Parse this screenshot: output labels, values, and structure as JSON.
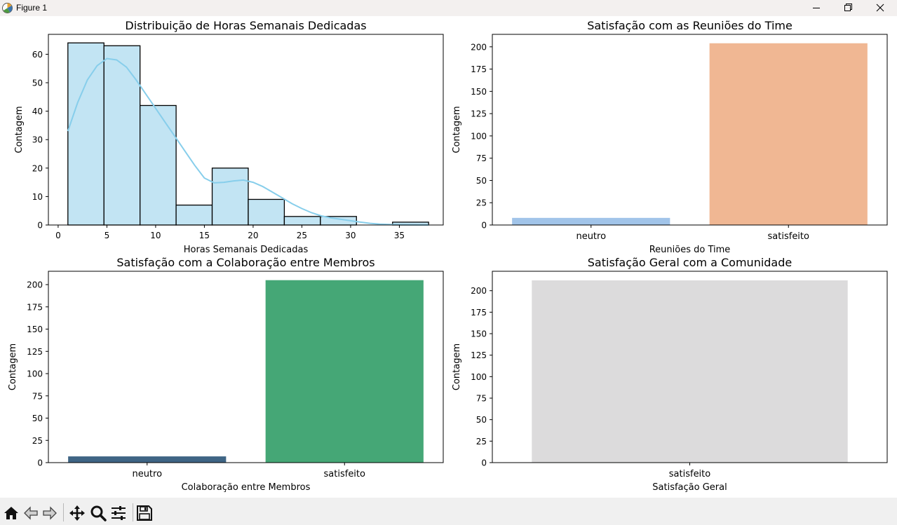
{
  "window": {
    "title": "Figure 1"
  },
  "toolbar": {
    "buttons": [
      {
        "name": "home",
        "icon": "home-icon"
      },
      {
        "name": "back",
        "icon": "back-arrow-icon"
      },
      {
        "name": "forward",
        "icon": "forward-arrow-icon"
      },
      {
        "name": "pan",
        "icon": "move-icon"
      },
      {
        "name": "zoom",
        "icon": "magnifier-icon"
      },
      {
        "name": "configure-subplots",
        "icon": "sliders-icon"
      },
      {
        "name": "save",
        "icon": "floppy-disk-icon"
      }
    ]
  },
  "chart_data": [
    {
      "type": "bar",
      "subtype": "histogram-with-kde",
      "title": "Distribuição de Horas Semanais Dedicadas",
      "xlabel": "Horas Semanais Dedicadas",
      "ylabel": "Contagem",
      "bins": [
        {
          "x0": 1.0,
          "x1": 4.7,
          "count": 64
        },
        {
          "x0": 4.7,
          "x1": 8.4,
          "count": 63
        },
        {
          "x0": 8.4,
          "x1": 12.1,
          "count": 42
        },
        {
          "x0": 12.1,
          "x1": 15.8,
          "count": 7
        },
        {
          "x0": 15.8,
          "x1": 19.5,
          "count": 20
        },
        {
          "x0": 19.5,
          "x1": 23.2,
          "count": 9
        },
        {
          "x0": 23.2,
          "x1": 26.9,
          "count": 3
        },
        {
          "x0": 26.9,
          "x1": 30.6,
          "count": 3
        },
        {
          "x0": 30.6,
          "x1": 34.3,
          "count": 0
        },
        {
          "x0": 34.3,
          "x1": 38.0,
          "count": 1
        }
      ],
      "kde": {
        "x": [
          1,
          2,
          3,
          4,
          5,
          6,
          7,
          8,
          9,
          10,
          11,
          12,
          13,
          14,
          15,
          16,
          17,
          18,
          19,
          20,
          21,
          22,
          23,
          24,
          25,
          26,
          27,
          28,
          29,
          30,
          31,
          32,
          33,
          34,
          35,
          36,
          37,
          38
        ],
        "y": [
          33,
          43,
          51,
          56,
          58.5,
          58,
          55.5,
          51,
          46,
          41,
          36,
          31,
          26,
          21,
          16.5,
          14.8,
          15,
          15.5,
          15.8,
          15,
          13.5,
          11.5,
          9.5,
          7.5,
          5.8,
          4.3,
          3.2,
          2.5,
          2.0,
          1.5,
          1.0,
          0.6,
          0.3,
          0.2,
          0.1,
          0.05,
          0.02,
          0.01
        ]
      },
      "xlim": [
        -1,
        39.5
      ],
      "ylim": [
        0,
        67
      ],
      "xticks": [
        0,
        5,
        10,
        15,
        20,
        25,
        30,
        35
      ],
      "yticks": [
        0,
        10,
        20,
        30,
        40,
        50,
        60
      ],
      "colors": {
        "bar": "#c2e4f3",
        "edge": "#000000",
        "kde": "#87ceeb"
      }
    },
    {
      "type": "bar",
      "title": "Satisfação com as Reuniões do Time",
      "xlabel": "Reuniões do Time",
      "ylabel": "Contagem",
      "categories": [
        "neutro",
        "satisfeito"
      ],
      "values": [
        8,
        204
      ],
      "ylim": [
        0,
        214
      ],
      "yticks": [
        0,
        25,
        50,
        75,
        100,
        125,
        150,
        175,
        200
      ],
      "colors": [
        "#a1c4e9",
        "#f0b793"
      ]
    },
    {
      "type": "bar",
      "title": "Satisfação com a Colaboração entre Membros",
      "xlabel": "Colaboração entre Membros",
      "ylabel": "Contagem",
      "categories": [
        "neutro",
        "satisfeito"
      ],
      "values": [
        7,
        205
      ],
      "ylim": [
        0,
        215
      ],
      "yticks": [
        0,
        25,
        50,
        75,
        100,
        125,
        150,
        175,
        200
      ],
      "colors": [
        "#3f6585",
        "#45a776"
      ]
    },
    {
      "type": "bar",
      "title": "Satisfação Geral com a Comunidade",
      "xlabel": "Satisfação Geral",
      "ylabel": "Contagem",
      "categories": [
        "satisfeito"
      ],
      "values": [
        212
      ],
      "ylim": [
        0,
        222.6
      ],
      "yticks": [
        0,
        25,
        50,
        75,
        100,
        125,
        150,
        175,
        200
      ],
      "colors": [
        "#dcdbdc"
      ]
    }
  ]
}
